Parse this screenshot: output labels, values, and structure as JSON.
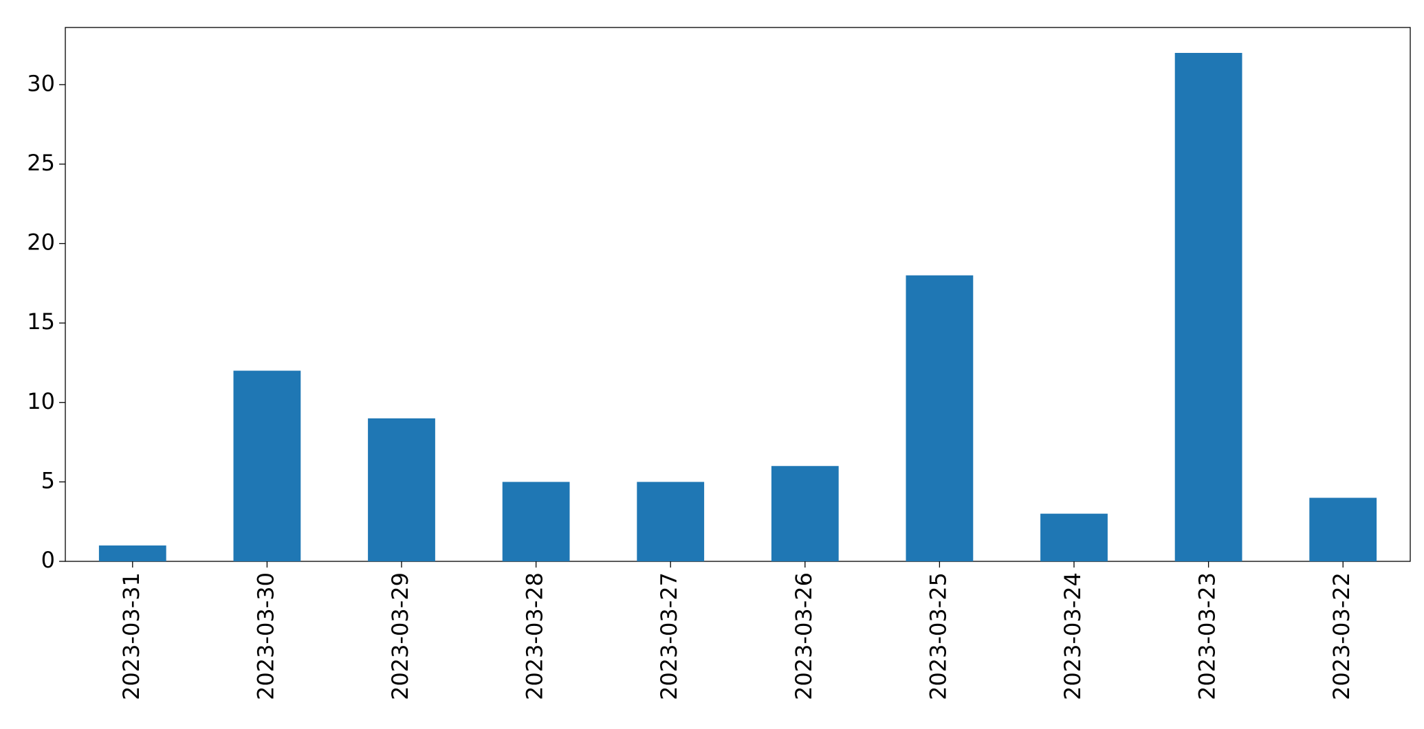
{
  "chart_data": {
    "type": "bar",
    "categories": [
      "2023-03-31",
      "2023-03-30",
      "2023-03-29",
      "2023-03-28",
      "2023-03-27",
      "2023-03-26",
      "2023-03-25",
      "2023-03-24",
      "2023-03-23",
      "2023-03-22"
    ],
    "values": [
      1,
      12,
      9,
      5,
      5,
      6,
      18,
      3,
      32,
      4
    ],
    "color": "#1f77b4",
    "ylim": [
      0,
      33.6
    ],
    "yticks": [
      0,
      5,
      10,
      15,
      20,
      25,
      30
    ],
    "grid": false
  }
}
